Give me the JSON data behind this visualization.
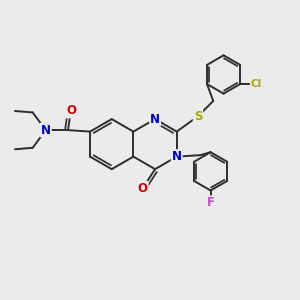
{
  "bg_color": "#ebebeb",
  "bond_color": "#2d2d2d",
  "bond_width": 1.4,
  "atom_colors": {
    "C": "#2d2d2d",
    "N": "#0000cc",
    "O": "#cc0000",
    "S": "#aaaa00",
    "Cl": "#aaaa00",
    "F": "#cc44cc"
  },
  "font_size": 8.5,
  "figsize": [
    3.0,
    3.0
  ],
  "dpi": 100
}
